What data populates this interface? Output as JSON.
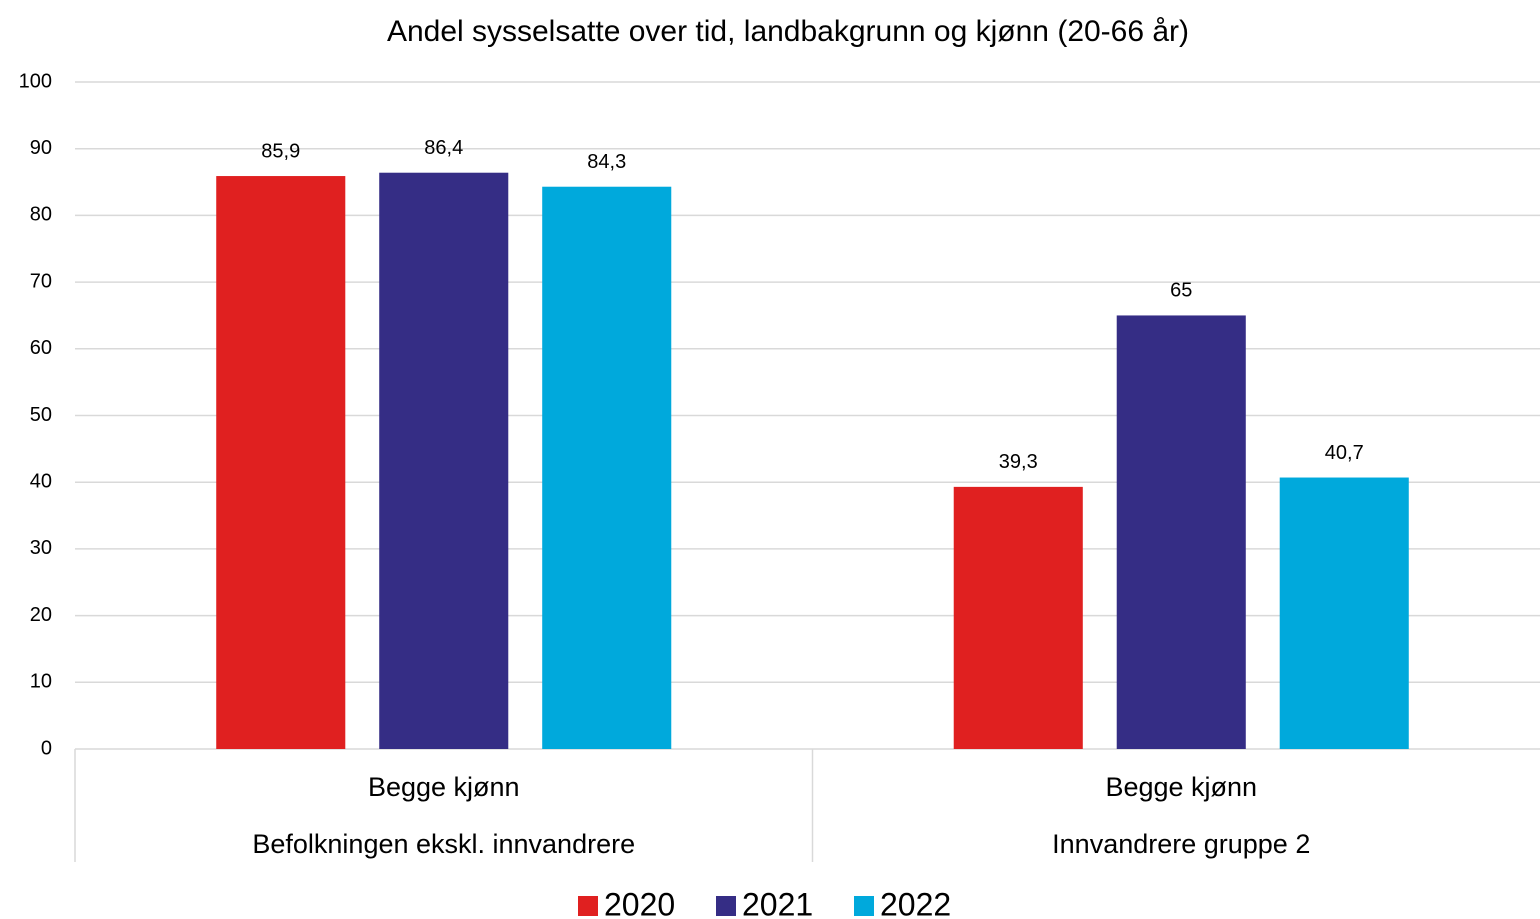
{
  "chart_data": {
    "type": "bar",
    "title": "Andel sysselsatte over tid, landbakgrunn og kjønn (20-66 år)",
    "categories": [
      "Begge kjønn",
      "Begge kjønn"
    ],
    "category_groups": [
      "Befolkningen ekskl. innvandrere",
      "Innvandrere gruppe 2"
    ],
    "series": [
      {
        "name": "2020",
        "color": "#e02020",
        "values": [
          85.9,
          39.3
        ],
        "value_labels": [
          "85,9",
          "39,3"
        ]
      },
      {
        "name": "2021",
        "color": "#352d85",
        "values": [
          86.4,
          65
        ],
        "value_labels": [
          "86,4",
          "65"
        ]
      },
      {
        "name": "2022",
        "color": "#00a9dc",
        "values": [
          84.3,
          40.7
        ],
        "value_labels": [
          "84,3",
          "40,7"
        ]
      }
    ],
    "ylim": [
      0,
      100
    ],
    "yticks": [
      0,
      10,
      20,
      30,
      40,
      50,
      60,
      70,
      80,
      90,
      100
    ],
    "grid": true,
    "legend": "bottom"
  }
}
